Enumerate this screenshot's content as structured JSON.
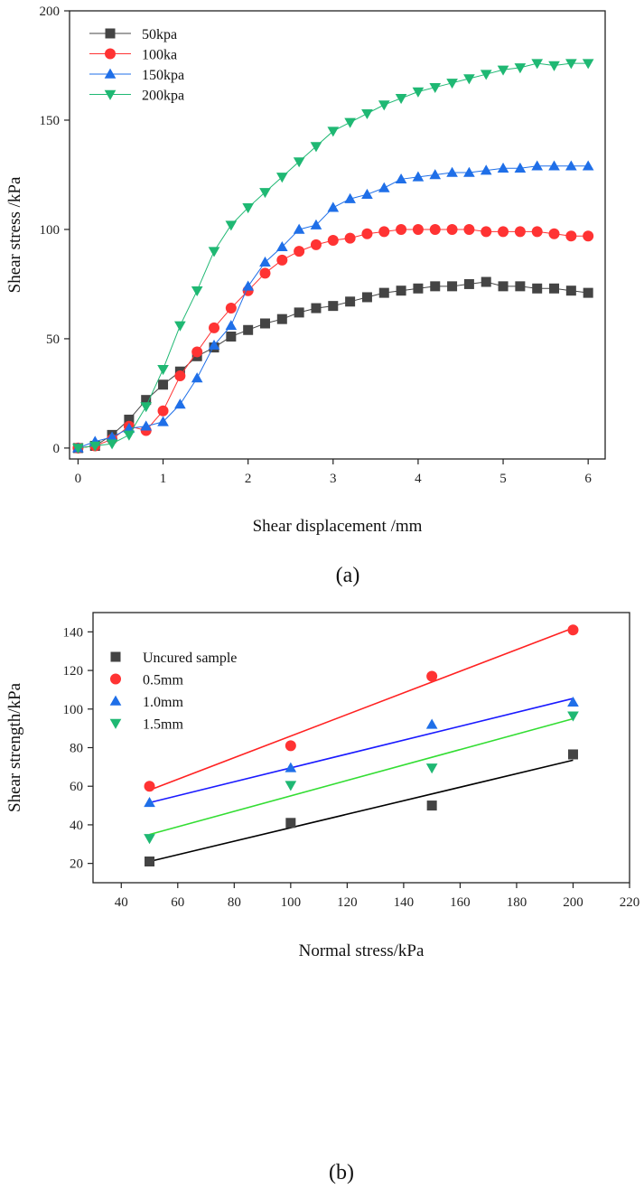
{
  "chart_data": [
    {
      "type": "line",
      "caption": "(a)",
      "xlabel": "Shear displacement /mm",
      "ylabel": "Shear stress /kPa",
      "xlim": [
        -0.1,
        6.2
      ],
      "ylim": [
        -5,
        200
      ],
      "xticks": [
        0,
        1,
        2,
        3,
        4,
        5,
        6
      ],
      "yticks": [
        0,
        50,
        100,
        150,
        200
      ],
      "legend_position": "top-left",
      "series": [
        {
          "name": "50kpa",
          "color": "#444444",
          "marker": "square",
          "x": [
            0,
            0.2,
            0.4,
            0.6,
            0.8,
            1.0,
            1.2,
            1.4,
            1.6,
            1.8,
            2.0,
            2.2,
            2.4,
            2.6,
            2.8,
            3.0,
            3.2,
            3.4,
            3.6,
            3.8,
            4.0,
            4.2,
            4.4,
            4.6,
            4.8,
            5.0,
            5.2,
            5.4,
            5.6,
            5.8,
            6.0
          ],
          "y": [
            0,
            1,
            6,
            13,
            22,
            29,
            35,
            42,
            46,
            51,
            54,
            57,
            59,
            62,
            64,
            65,
            67,
            69,
            71,
            72,
            73,
            74,
            74,
            75,
            76,
            74,
            74,
            73,
            73,
            72,
            71
          ]
        },
        {
          "name": "100ka",
          "color": "#ff3333",
          "marker": "circle",
          "x": [
            0,
            0.2,
            0.4,
            0.6,
            0.8,
            1.0,
            1.2,
            1.4,
            1.6,
            1.8,
            2.0,
            2.2,
            2.4,
            2.6,
            2.8,
            3.0,
            3.2,
            3.4,
            3.6,
            3.8,
            4.0,
            4.2,
            4.4,
            4.6,
            4.8,
            5.0,
            5.2,
            5.4,
            5.6,
            5.8,
            6.0
          ],
          "y": [
            0,
            1,
            4,
            10,
            8,
            17,
            33,
            44,
            55,
            64,
            72,
            80,
            86,
            90,
            93,
            95,
            96,
            98,
            99,
            100,
            100,
            100,
            100,
            100,
            99,
            99,
            99,
            99,
            98,
            97,
            97
          ]
        },
        {
          "name": "150kpa",
          "color": "#1f6fe8",
          "marker": "triangle-up",
          "x": [
            0,
            0.2,
            0.4,
            0.6,
            0.8,
            1.0,
            1.2,
            1.4,
            1.6,
            1.8,
            2.0,
            2.2,
            2.4,
            2.6,
            2.8,
            3.0,
            3.2,
            3.4,
            3.6,
            3.8,
            4.0,
            4.2,
            4.4,
            4.6,
            4.8,
            5.0,
            5.2,
            5.4,
            5.6,
            5.8,
            6.0
          ],
          "y": [
            0,
            3,
            5,
            9,
            10,
            12,
            20,
            32,
            47,
            56,
            74,
            85,
            92,
            100,
            102,
            110,
            114,
            116,
            119,
            123,
            124,
            125,
            126,
            126,
            127,
            128,
            128,
            129,
            129,
            129,
            129
          ]
        },
        {
          "name": "200kpa",
          "color": "#1fb873",
          "marker": "triangle-down",
          "x": [
            0,
            0.2,
            0.4,
            0.6,
            0.8,
            1.0,
            1.2,
            1.4,
            1.6,
            1.8,
            2.0,
            2.2,
            2.4,
            2.6,
            2.8,
            3.0,
            3.2,
            3.4,
            3.6,
            3.8,
            4.0,
            4.2,
            4.4,
            4.6,
            4.8,
            5.0,
            5.2,
            5.4,
            5.6,
            5.8,
            6.0
          ],
          "y": [
            0,
            1,
            2,
            6,
            19,
            36,
            56,
            72,
            90,
            102,
            110,
            117,
            124,
            131,
            138,
            145,
            149,
            153,
            157,
            160,
            163,
            165,
            167,
            169,
            171,
            173,
            174,
            176,
            175,
            176,
            176
          ]
        }
      ]
    },
    {
      "type": "scatter",
      "caption": "(b)",
      "xlabel": "Normal stress/kPa",
      "ylabel": "Shear strength/kPa",
      "xlim": [
        30,
        220
      ],
      "ylim": [
        10,
        150
      ],
      "xticks": [
        40,
        60,
        80,
        100,
        120,
        140,
        160,
        180,
        200,
        220
      ],
      "yticks": [
        20,
        40,
        60,
        80,
        100,
        120,
        140
      ],
      "legend_position": "top-left",
      "series": [
        {
          "name": "Uncured sample",
          "color": "#444444",
          "line_color": "#000000",
          "marker": "square",
          "x": [
            50,
            100,
            150,
            200
          ],
          "y": [
            21,
            41,
            50,
            76.5
          ],
          "fit": [
            21,
            73.5
          ]
        },
        {
          "name": "0.5mm",
          "color": "#ff3333",
          "line_color": "#ff2222",
          "marker": "circle",
          "x": [
            50,
            100,
            150,
            200
          ],
          "y": [
            60,
            81,
            117,
            141
          ],
          "fit": [
            58,
            142
          ]
        },
        {
          "name": "1.0mm",
          "color": "#1f6fe8",
          "line_color": "#1a1aff",
          "marker": "triangle-up",
          "x": [
            50,
            100,
            150,
            200
          ],
          "y": [
            51.5,
            69.5,
            92,
            103.5
          ],
          "fit": [
            51.5,
            105.5
          ]
        },
        {
          "name": "1.5mm",
          "color": "#1fb873",
          "line_color": "#33dd33",
          "marker": "triangle-down",
          "x": [
            50,
            100,
            150,
            200
          ],
          "y": [
            33,
            60.5,
            69.5,
            96.5
          ],
          "fit": [
            35,
            95
          ]
        }
      ]
    }
  ]
}
